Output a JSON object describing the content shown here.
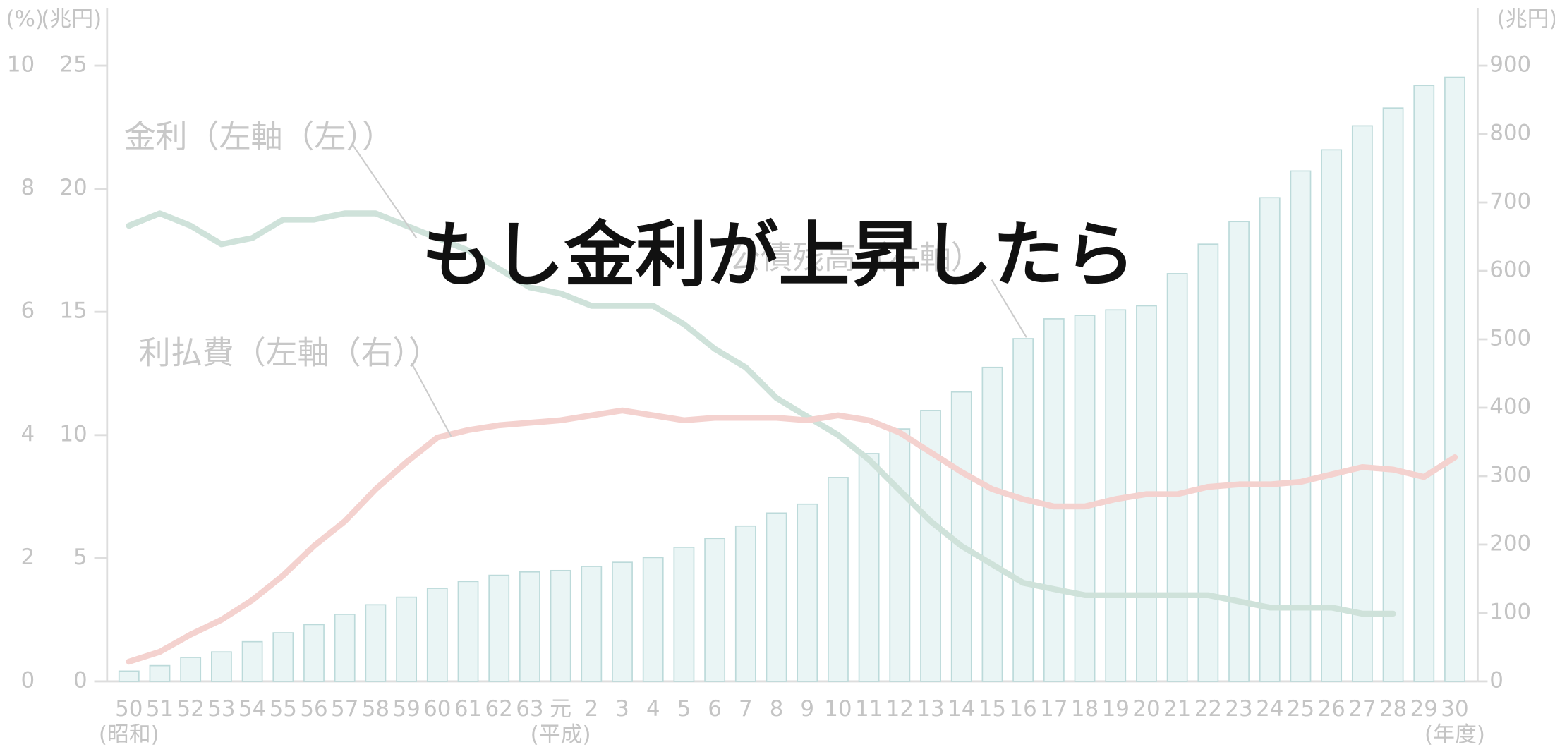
{
  "chart_data": {
    "type": "bar_line",
    "title": "もし金利が上昇したら",
    "ylabel": "(兆円)",
    "ypct_label": "(%)",
    "y2label": "(兆円)",
    "categories": [
      "50",
      "51",
      "52",
      "53",
      "54",
      "55",
      "56",
      "57",
      "58",
      "59",
      "60",
      "61",
      "62",
      "63",
      "元",
      "2",
      "3",
      "4",
      "5",
      "6",
      "7",
      "8",
      "9",
      "10",
      "11",
      "12",
      "13",
      "14",
      "15",
      "16",
      "17",
      "18",
      "19",
      "20",
      "21",
      "22",
      "23",
      "24",
      "25",
      "26",
      "27",
      "28",
      "29",
      "30"
    ],
    "x_sublabels": [
      {
        "category": "50",
        "label": "(昭和)"
      },
      {
        "category": "元",
        "label": "(平成)"
      },
      {
        "category": "30",
        "label": "(年度)"
      }
    ],
    "ylim": [
      0,
      25
    ],
    "yticks": [
      0,
      5,
      10,
      15,
      20,
      25
    ],
    "ypctlim": [
      0,
      10
    ],
    "ypctticks": [
      0,
      2,
      4,
      6,
      8,
      10
    ],
    "y2lim": [
      0,
      900
    ],
    "y2ticks": [
      0,
      100,
      200,
      300,
      400,
      500,
      600,
      700,
      800,
      900
    ],
    "series": [
      {
        "name": "公債残高（右軸）",
        "kind": "bar",
        "axis": "y2",
        "color": "#eaf5f5",
        "stroke": "#bcdada",
        "values": [
          15,
          23,
          35,
          43,
          58,
          71,
          83,
          98,
          112,
          123,
          136,
          146,
          155,
          160,
          162,
          168,
          174,
          181,
          196,
          209,
          227,
          246,
          259,
          298,
          333,
          369,
          396,
          423,
          459,
          501,
          530,
          535,
          543,
          549,
          596,
          639,
          672,
          707,
          746,
          777,
          812,
          838,
          871,
          883
        ]
      },
      {
        "name": "金利（左軸（左））",
        "kind": "line",
        "axis": "ypct",
        "color": "#cfe2da",
        "values": [
          7.4,
          7.6,
          7.4,
          7.1,
          7.2,
          7.5,
          7.5,
          7.6,
          7.6,
          7.4,
          7.2,
          7.0,
          6.7,
          6.4,
          6.3,
          6.1,
          6.1,
          6.1,
          5.8,
          5.4,
          5.1,
          4.6,
          4.3,
          4.0,
          3.6,
          3.1,
          2.6,
          2.2,
          1.9,
          1.6,
          1.5,
          1.4,
          1.4,
          1.4,
          1.4,
          1.4,
          1.3,
          1.2,
          1.2,
          1.2,
          1.1,
          1.1,
          null,
          null
        ]
      },
      {
        "name": "利払費（左軸（右））",
        "kind": "line",
        "axis": "y",
        "color": "#f4d2cf",
        "values": [
          0.8,
          1.2,
          1.9,
          2.5,
          3.3,
          4.3,
          5.5,
          6.5,
          7.8,
          8.9,
          9.9,
          10.2,
          10.4,
          10.5,
          10.6,
          10.8,
          11.0,
          10.8,
          10.6,
          10.7,
          10.7,
          10.7,
          10.6,
          10.8,
          10.6,
          10.1,
          9.3,
          8.5,
          7.8,
          7.4,
          7.1,
          7.1,
          7.4,
          7.6,
          7.6,
          7.9,
          8.0,
          8.0,
          8.1,
          8.4,
          8.7,
          8.6,
          8.3,
          9.1
        ]
      }
    ]
  }
}
